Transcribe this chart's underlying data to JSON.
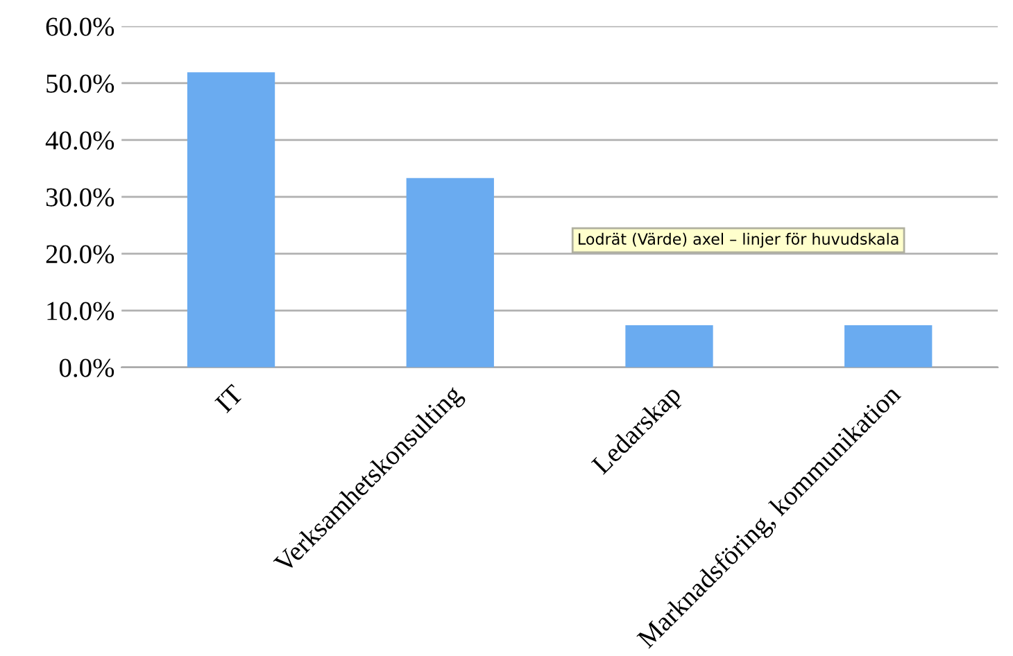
{
  "chart_data": {
    "type": "bar",
    "categories": [
      "IT",
      "Verksamhetskonsulting",
      "Ledarskap",
      "Marknadsföring, kommunikation"
    ],
    "values": [
      51.9,
      33.3,
      7.4,
      7.4
    ],
    "color": "#6aabf0",
    "ylim": [
      0,
      60
    ],
    "yticks": [
      {
        "value": 0,
        "label": "0.0%"
      },
      {
        "value": 10,
        "label": "10.0%"
      },
      {
        "value": 20,
        "label": "20.0%"
      },
      {
        "value": 30,
        "label": "30.0%"
      },
      {
        "value": 40,
        "label": "40.0%"
      },
      {
        "value": 50,
        "label": "50.0%"
      },
      {
        "value": 60,
        "label": "60.0%"
      }
    ],
    "grid": "y",
    "annotations": [
      "Lodrät (Värde) axel – linjer för huvudskala"
    ]
  }
}
